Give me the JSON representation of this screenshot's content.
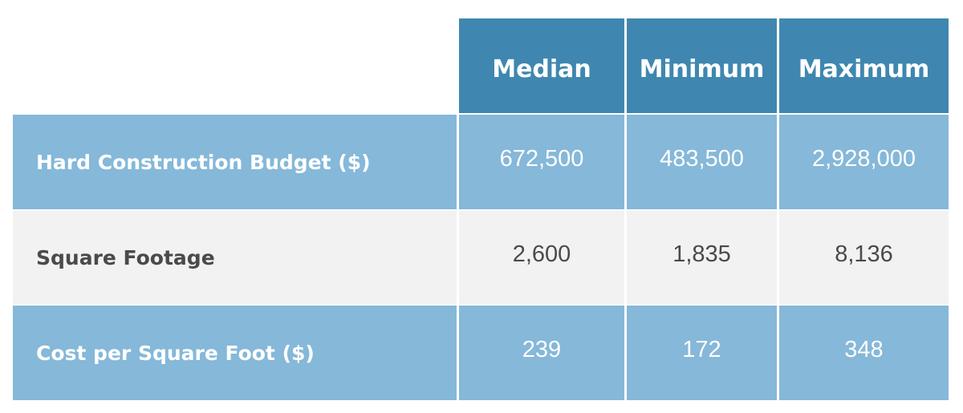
{
  "table": {
    "headers": [
      "Median",
      "Minimum",
      "Maximum"
    ],
    "rows": [
      {
        "label": "Hard Construction Budget ($)",
        "values": [
          "672,500",
          "483,500",
          "2,928,000"
        ]
      },
      {
        "label": "Square Footage",
        "values": [
          "2,600",
          "1,835",
          "8,136"
        ]
      },
      {
        "label": "Cost per Square Foot ($)",
        "values": [
          "239",
          "172",
          "348"
        ]
      }
    ]
  },
  "colors": {
    "header_bg": "#3f87b0",
    "row_blue_bg": "#85b8d9",
    "row_gray_bg": "#f2f2f2",
    "text_dark": "#4a4a4a",
    "text_light": "#ffffff"
  }
}
